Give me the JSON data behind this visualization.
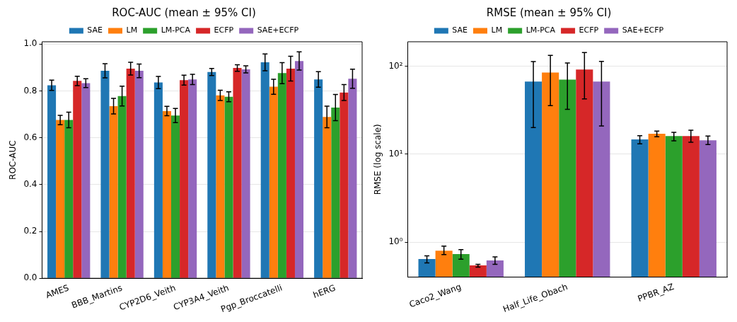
{
  "chart_data": [
    {
      "type": "bar",
      "title": "ROC-AUC (mean ± 95% CI)",
      "ylabel": "ROC-AUC",
      "categories": [
        "AMES",
        "BBB_Martins",
        "CYP2D6_Veith",
        "CYP3A4_Veith",
        "Pgp_Broccatelli",
        "hERG"
      ],
      "series": [
        {
          "name": "SAE",
          "color": "#1f77b4",
          "values": [
            0.824,
            0.886,
            0.836,
            0.881,
            0.922,
            0.849
          ],
          "errors": [
            0.022,
            0.03,
            0.026,
            0.015,
            0.036,
            0.033
          ]
        },
        {
          "name": "LM",
          "color": "#ff7f0e",
          "values": [
            0.676,
            0.735,
            0.714,
            0.781,
            0.818,
            0.689
          ],
          "errors": [
            0.02,
            0.033,
            0.02,
            0.022,
            0.032,
            0.046
          ]
        },
        {
          "name": "LM-PCA",
          "color": "#2ca02c",
          "values": [
            0.676,
            0.778,
            0.695,
            0.775,
            0.876,
            0.729
          ],
          "errors": [
            0.033,
            0.042,
            0.03,
            0.021,
            0.045,
            0.056
          ]
        },
        {
          "name": "ECFP",
          "color": "#d62728",
          "values": [
            0.843,
            0.895,
            0.846,
            0.898,
            0.895,
            0.793
          ],
          "errors": [
            0.02,
            0.027,
            0.021,
            0.014,
            0.053,
            0.034
          ]
        },
        {
          "name": "SAE+ECFP",
          "color": "#9467bd",
          "values": [
            0.833,
            0.886,
            0.849,
            0.892,
            0.928,
            0.852
          ],
          "errors": [
            0.019,
            0.029,
            0.022,
            0.015,
            0.039,
            0.041
          ]
        }
      ],
      "ylim": [
        0,
        1.01
      ],
      "yticks": [
        {
          "value": 0,
          "label": "0.0"
        },
        0.2,
        0.4,
        0.6,
        0.8,
        {
          "value": 1,
          "label": "1.0"
        }
      ],
      "grid": "y",
      "legend": "top"
    },
    {
      "type": "bar",
      "title": "RMSE (mean ± 95% CI)",
      "ylabel": "RMSE (log scale)",
      "categories": [
        "Caco2_Wang",
        "Half_Life_Obach",
        "PPBR_AZ"
      ],
      "series": [
        {
          "name": "SAE",
          "color": "#1f77b4",
          "values": [
            0.643,
            66.9,
            14.7
          ],
          "errors": [
            [
              0.58,
              0.7
            ],
            [
              20.1,
              113
            ],
            [
              13.1,
              16.2
            ]
          ]
        },
        {
          "name": "LM",
          "color": "#ff7f0e",
          "values": [
            0.8,
            85,
            17.1
          ],
          "errors": [
            [
              0.72,
              0.9
            ],
            [
              35.6,
              133
            ],
            [
              15.8,
              18.3
            ]
          ]
        },
        {
          "name": "LM-PCA",
          "color": "#2ca02c",
          "values": [
            0.733,
            70.6,
            16.1
          ],
          "errors": [
            [
              0.64,
              0.82
            ],
            [
              32.3,
              109
            ],
            [
              14.2,
              17.7
            ]
          ]
        },
        {
          "name": "ECFP",
          "color": "#d62728",
          "values": [
            0.543,
            91.7,
            16.1
          ],
          "errors": [
            [
              0.52,
              0.56
            ],
            [
              42.5,
              143
            ],
            [
              13.7,
              18.7
            ]
          ]
        },
        {
          "name": "SAE+ECFP",
          "color": "#9467bd",
          "values": [
            0.62,
            66.9,
            14.4
          ],
          "errors": [
            [
              0.56,
              0.68
            ],
            [
              20.9,
              113.6
            ],
            [
              12.9,
              16.1
            ]
          ]
        }
      ],
      "log": true,
      "ylim": [
        0.4,
        190
      ],
      "yticks": [
        {
          "value": 1,
          "label": "10⁰"
        },
        {
          "value": 10,
          "label": "10¹"
        },
        {
          "value": 100,
          "label": "10²"
        }
      ],
      "grid": "y",
      "legend": "top"
    }
  ]
}
